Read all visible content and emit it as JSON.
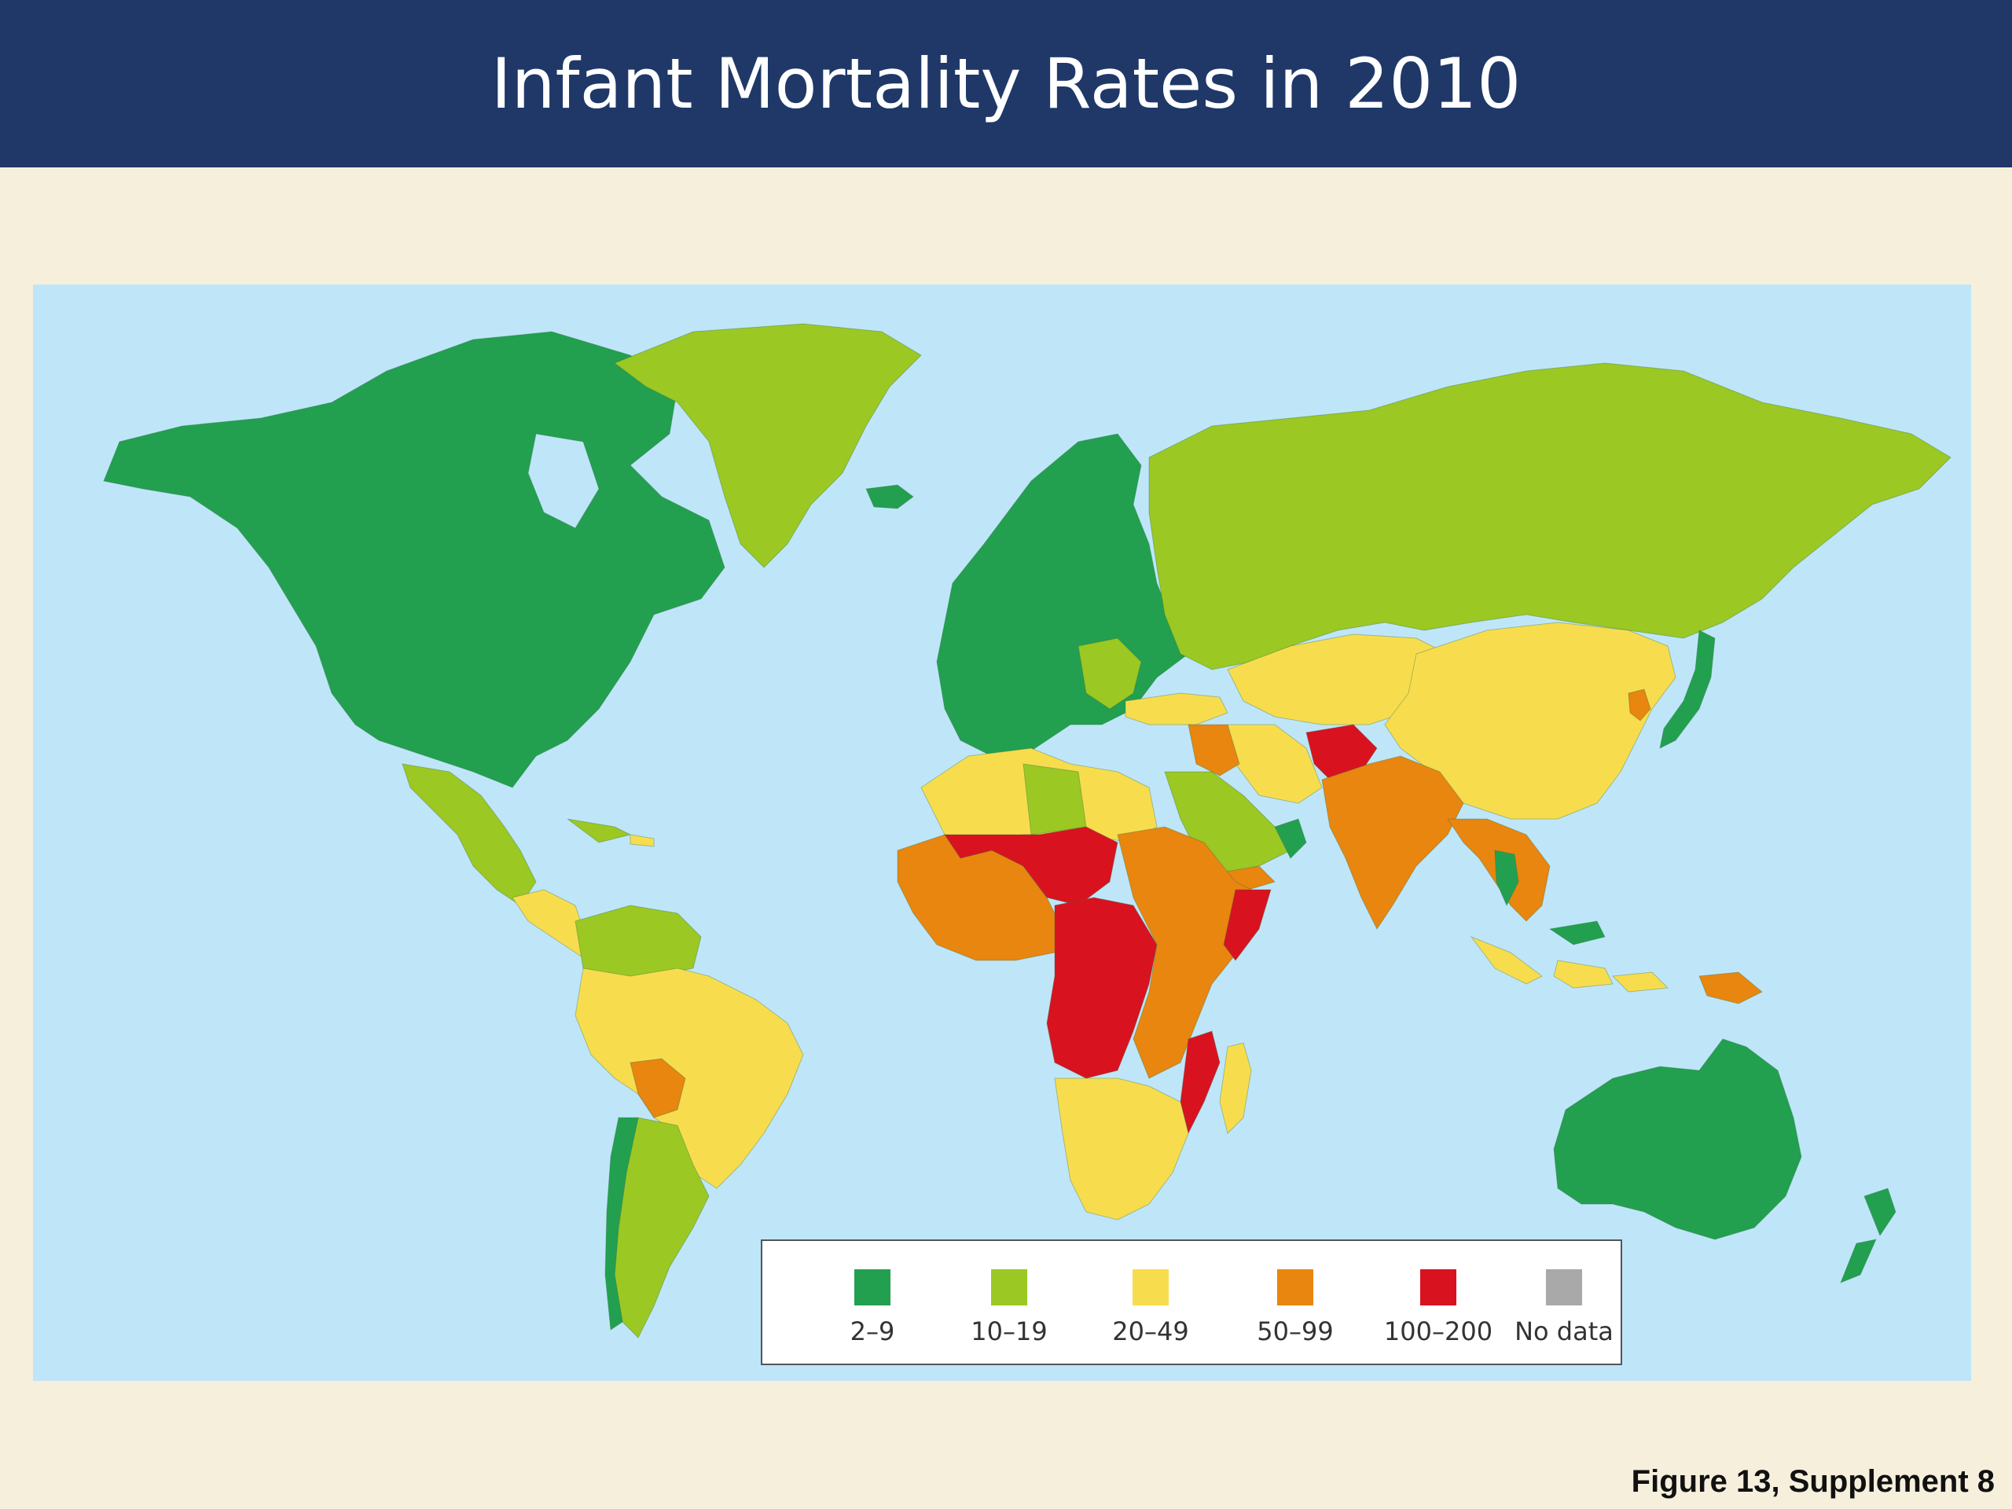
{
  "title": "Infant Mortality Rates in 2010",
  "caption": "Figure 13, Supplement 8",
  "colors": {
    "ocean": "#bfe6f8",
    "band_2_9": "#22a04f",
    "band_10_19": "#9bc823",
    "band_20_49": "#f7dd4e",
    "band_50_99": "#e8860f",
    "band_100_200": "#d9121f",
    "no_data": "#a9a9a9"
  },
  "legend": {
    "items": [
      {
        "label": "2–9",
        "color": "#22a04f"
      },
      {
        "label": "10–19",
        "color": "#9bc823"
      },
      {
        "label": "20–49",
        "color": "#f7dd4e"
      },
      {
        "label": "50–99",
        "color": "#e8860f"
      },
      {
        "label": "100–200",
        "color": "#d9121f"
      },
      {
        "label": "No data",
        "color": "#a9a9a9"
      }
    ]
  },
  "regions": [
    {
      "name": "North America",
      "band": "2–9"
    },
    {
      "name": "Greenland",
      "band": "10–19"
    },
    {
      "name": "Iceland",
      "band": "2–9"
    },
    {
      "name": "Europe",
      "band": "2–9"
    },
    {
      "name": "Russia",
      "band": "10–19"
    },
    {
      "name": "Mexico",
      "band": "10–19"
    },
    {
      "name": "Central America",
      "band": "20–49"
    },
    {
      "name": "Northern South America",
      "band": "10–19"
    },
    {
      "name": "Brazil",
      "band": "20–49"
    },
    {
      "name": "Bolivia",
      "band": "50–99"
    },
    {
      "name": "Argentina",
      "band": "10–19"
    },
    {
      "name": "Chile",
      "band": "2–9"
    },
    {
      "name": "North Africa",
      "band": "20–49"
    },
    {
      "name": "Libya",
      "band": "10–19"
    },
    {
      "name": "West Africa",
      "band": "50–99"
    },
    {
      "name": "Sahel",
      "band": "100–200"
    },
    {
      "name": "Central Africa",
      "band": "100–200"
    },
    {
      "name": "East Africa",
      "band": "50–99"
    },
    {
      "name": "Southern Africa",
      "band": "20–49"
    },
    {
      "name": "Madagascar",
      "band": "20–49"
    },
    {
      "name": "Arabian Peninsula",
      "band": "10–19"
    },
    {
      "name": "Yemen",
      "band": "50–99"
    },
    {
      "name": "Iran",
      "band": "20–49"
    },
    {
      "name": "Afghanistan",
      "band": "100–200"
    },
    {
      "name": "India",
      "band": "50–99"
    },
    {
      "name": "Central Asia",
      "band": "20–49"
    },
    {
      "name": "China",
      "band": "20–49"
    },
    {
      "name": "Japan",
      "band": "2–9"
    },
    {
      "name": "Southeast Asia",
      "band": "50–99"
    },
    {
      "name": "Indonesia",
      "band": "20–49"
    },
    {
      "name": "Papua New Guinea",
      "band": "50–99"
    },
    {
      "name": "Australia",
      "band": "2–9"
    },
    {
      "name": "New Zealand",
      "band": "2–9"
    }
  ]
}
